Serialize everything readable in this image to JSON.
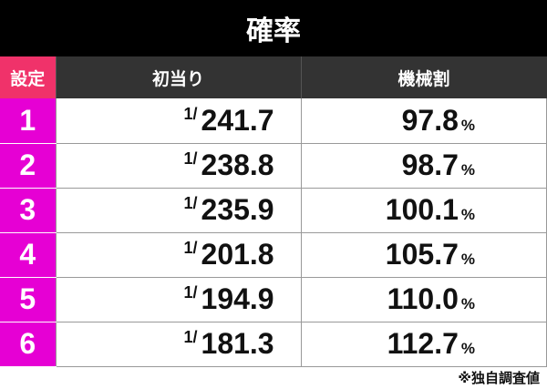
{
  "title": "確率",
  "headers": {
    "setting": "設定",
    "first_hit": "初当り",
    "payout": "機械割"
  },
  "rows": [
    {
      "setting": "1",
      "numerator": "1/",
      "denominator": "241.7",
      "payout": "97.8",
      "unit": "%"
    },
    {
      "setting": "2",
      "numerator": "1/",
      "denominator": "238.8",
      "payout": "98.7",
      "unit": "%"
    },
    {
      "setting": "3",
      "numerator": "1/",
      "denominator": "235.9",
      "payout": "100.1",
      "unit": "%"
    },
    {
      "setting": "4",
      "numerator": "1/",
      "denominator": "201.8",
      "payout": "105.7",
      "unit": "%"
    },
    {
      "setting": "5",
      "numerator": "1/",
      "denominator": "194.9",
      "payout": "110.0",
      "unit": "%"
    },
    {
      "setting": "6",
      "numerator": "1/",
      "denominator": "181.3",
      "payout": "112.7",
      "unit": "%"
    }
  ],
  "note": "※独自調査値",
  "colors": {
    "title_bg": "#000000",
    "header_bg": "#333333",
    "setting_header": "#f0326a",
    "setting_cell": "#e600d4"
  }
}
